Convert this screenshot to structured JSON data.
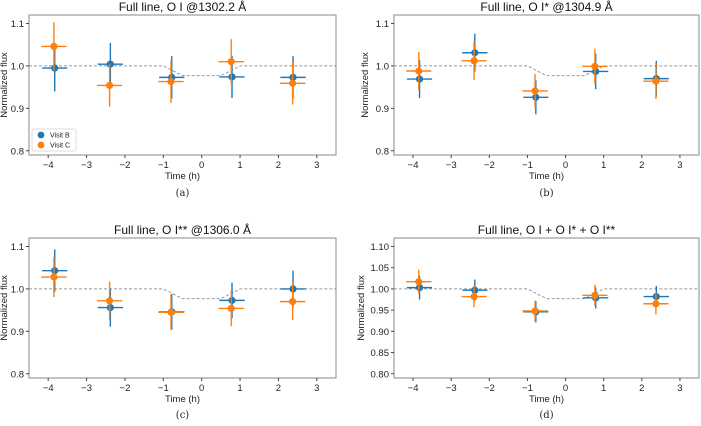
{
  "colors": {
    "visit_b": "#1f77b4",
    "visit_c": "#ff7f0e",
    "model": "#999999"
  },
  "chart_data": [
    {
      "type": "scatter",
      "caption": "(a)",
      "title": "Full line, O I @1302.2 Å",
      "xlabel": "Time (h)",
      "ylabel": "Normalized flux",
      "xlim": [
        -4.5,
        3.5
      ],
      "ylim": [
        0.79,
        1.12
      ],
      "xticks": [
        -4,
        -3,
        -2,
        -1,
        0,
        1,
        2,
        3
      ],
      "yticks": [
        0.8,
        0.9,
        1.0,
        1.1
      ],
      "ytick_labels": [
        "0.8",
        "0.9",
        "1.0",
        "1.1"
      ],
      "legend": {
        "placement": "lower-left",
        "entries": [
          "Visit B",
          "Visit C"
        ]
      },
      "series": [
        {
          "name": "Visit B",
          "x": [
            -3.83,
            -2.38,
            -0.78,
            0.79,
            2.38
          ],
          "y": [
            0.995,
            1.004,
            0.973,
            0.974,
            0.973
          ],
          "xerr": 0.33,
          "yerr": [
            0.055,
            0.05,
            0.05,
            0.05,
            0.05
          ]
        },
        {
          "name": "Visit C",
          "x": [
            -3.85,
            -2.4,
            -0.8,
            0.77,
            2.37
          ],
          "y": [
            1.046,
            0.954,
            0.963,
            1.01,
            0.959
          ],
          "xerr": 0.33,
          "yerr": [
            0.057,
            0.05,
            0.05,
            0.053,
            0.05
          ]
        }
      ],
      "model": {
        "x": [
          -4.5,
          -1.0,
          -0.5,
          0.5,
          1.0,
          3.5
        ],
        "y": [
          1.0,
          1.0,
          0.977,
          0.977,
          1.0,
          1.0
        ]
      }
    },
    {
      "type": "scatter",
      "caption": "(b)",
      "title": "Full line, O I* @1304.9 Å",
      "xlabel": "Time (h)",
      "ylabel": "Normalized flux",
      "xlim": [
        -4.5,
        3.5
      ],
      "ylim": [
        0.79,
        1.12
      ],
      "xticks": [
        -4,
        -3,
        -2,
        -1,
        0,
        1,
        2,
        3
      ],
      "yticks": [
        0.8,
        0.9,
        1.0,
        1.1
      ],
      "ytick_labels": [
        "0.8",
        "0.9",
        "1.0",
        "1.1"
      ],
      "series": [
        {
          "name": "Visit B",
          "x": [
            -3.83,
            -2.38,
            -0.78,
            0.79,
            2.38
          ],
          "y": [
            0.969,
            1.031,
            0.926,
            0.987,
            0.97
          ],
          "xerr": 0.33,
          "yerr": [
            0.045,
            0.045,
            0.04,
            0.042,
            0.042
          ]
        },
        {
          "name": "Visit C",
          "x": [
            -3.85,
            -2.4,
            -0.8,
            0.77,
            2.37
          ],
          "y": [
            0.988,
            1.012,
            0.941,
            0.999,
            0.964
          ],
          "xerr": 0.33,
          "yerr": [
            0.045,
            0.045,
            0.04,
            0.042,
            0.042
          ]
        }
      ],
      "model": {
        "x": [
          -4.5,
          -1.0,
          -0.5,
          0.5,
          1.0,
          3.5
        ],
        "y": [
          1.0,
          1.0,
          0.977,
          0.977,
          1.0,
          1.0
        ]
      }
    },
    {
      "type": "scatter",
      "caption": "(c)",
      "title": "Full line, O I** @1306.0 Å",
      "xlabel": "Time (h)",
      "ylabel": "Normalized flux",
      "xlim": [
        -4.5,
        3.5
      ],
      "ylim": [
        0.79,
        1.12
      ],
      "xticks": [
        -4,
        -3,
        -2,
        -1,
        0,
        1,
        2,
        3
      ],
      "yticks": [
        0.8,
        0.9,
        1.0,
        1.1
      ],
      "ytick_labels": [
        "0.8",
        "0.9",
        "1.0",
        "1.1"
      ],
      "series": [
        {
          "name": "Visit B",
          "x": [
            -3.83,
            -2.38,
            -0.78,
            0.79,
            2.38
          ],
          "y": [
            1.043,
            0.956,
            0.946,
            0.973,
            1.0
          ],
          "xerr": 0.33,
          "yerr": [
            0.05,
            0.045,
            0.042,
            0.042,
            0.043
          ]
        },
        {
          "name": "Visit C",
          "x": [
            -3.85,
            -2.4,
            -0.8,
            0.77,
            2.37
          ],
          "y": [
            1.028,
            0.972,
            0.945,
            0.954,
            0.97
          ],
          "xerr": 0.33,
          "yerr": [
            0.047,
            0.045,
            0.042,
            0.042,
            0.043
          ]
        }
      ],
      "model": {
        "x": [
          -4.5,
          -1.0,
          -0.5,
          0.5,
          1.0,
          3.5
        ],
        "y": [
          1.0,
          1.0,
          0.977,
          0.977,
          1.0,
          1.0
        ]
      }
    },
    {
      "type": "scatter",
      "caption": "(d)",
      "title": "Full line, O I + O I* + O I**",
      "xlabel": "Time (h)",
      "ylabel": "Normalized flux",
      "xlim": [
        -4.5,
        3.5
      ],
      "ylim": [
        0.79,
        1.12
      ],
      "xticks": [
        -4,
        -3,
        -2,
        -1,
        0,
        1,
        2,
        3
      ],
      "yticks": [
        0.8,
        0.85,
        0.9,
        0.95,
        1.0,
        1.05,
        1.1
      ],
      "ytick_labels": [
        "0.80",
        "0.85",
        "0.90",
        "0.95",
        "1.00",
        "1.05",
        "1.10"
      ],
      "series": [
        {
          "name": "Visit B",
          "x": [
            -3.83,
            -2.38,
            -0.78,
            0.79,
            2.38
          ],
          "y": [
            1.003,
            0.997,
            0.946,
            0.979,
            0.982
          ],
          "xerr": 0.33,
          "yerr": [
            0.028,
            0.025,
            0.025,
            0.025,
            0.025
          ]
        },
        {
          "name": "Visit C",
          "x": [
            -3.85,
            -2.4,
            -0.8,
            0.77,
            2.37
          ],
          "y": [
            1.017,
            0.982,
            0.948,
            0.985,
            0.965
          ],
          "xerr": 0.33,
          "yerr": [
            0.028,
            0.025,
            0.025,
            0.025,
            0.025
          ]
        }
      ],
      "model": {
        "x": [
          -4.5,
          -1.0,
          -0.5,
          0.5,
          1.0,
          3.5
        ],
        "y": [
          1.0,
          1.0,
          0.977,
          0.977,
          1.0,
          1.0
        ]
      }
    }
  ]
}
